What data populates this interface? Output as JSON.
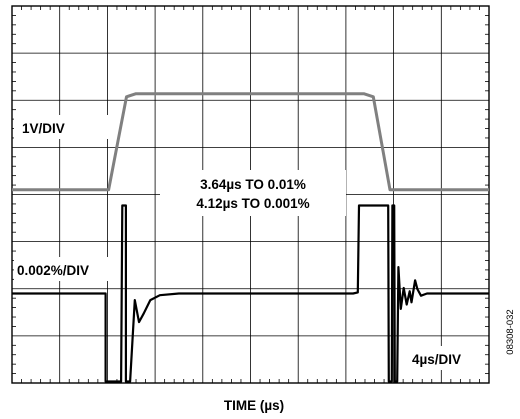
{
  "chart_data": {
    "type": "line",
    "title": "",
    "xlabel": "TIME (µs)",
    "ylabel": "",
    "grid": true,
    "divisions": {
      "x": 10,
      "y": 8
    },
    "x_scale_label": "4µs/DIV",
    "xlim": [
      0,
      40
    ],
    "series": [
      {
        "name": "1V/DIV",
        "color": "#808080",
        "unit": "V",
        "points": [
          [
            0,
            0
          ],
          [
            8.1,
            0
          ],
          [
            9.6,
            3.0
          ],
          [
            10.4,
            3.1
          ],
          [
            29.5,
            3.1
          ],
          [
            30.3,
            3.0
          ],
          [
            31.7,
            0
          ],
          [
            40,
            0
          ]
        ]
      },
      {
        "name": "0.002%/DIV",
        "color": "#000000",
        "unit": "%",
        "points": [
          [
            0,
            0
          ],
          [
            7.85,
            0
          ],
          [
            7.85,
            -4.0
          ],
          [
            9.15,
            -4.0
          ],
          [
            9.25,
            4.0
          ],
          [
            9.55,
            4.0
          ],
          [
            9.55,
            -4.0
          ],
          [
            9.9,
            -4.0
          ],
          [
            10.3,
            -0.3
          ],
          [
            10.65,
            -1.3
          ],
          [
            11.05,
            -0.9
          ],
          [
            11.6,
            -0.3
          ],
          [
            12.4,
            -0.08
          ],
          [
            14.0,
            0
          ],
          [
            28.6,
            0
          ],
          [
            29.0,
            0.05
          ],
          [
            29.1,
            4.0
          ],
          [
            31.55,
            4.0
          ],
          [
            31.6,
            -4.0
          ],
          [
            31.85,
            -4.0
          ],
          [
            31.9,
            4.0
          ],
          [
            32.05,
            4.0
          ],
          [
            32.1,
            -4.0
          ],
          [
            32.3,
            -4.0
          ],
          [
            32.4,
            1.2
          ],
          [
            32.6,
            -0.7
          ],
          [
            32.85,
            0.25
          ],
          [
            33.1,
            -0.5
          ],
          [
            33.35,
            0.1
          ],
          [
            33.5,
            -0.4
          ],
          [
            33.8,
            0.6
          ],
          [
            34.0,
            0.2
          ],
          [
            34.3,
            -0.1
          ],
          [
            34.8,
            0
          ],
          [
            40,
            0
          ]
        ]
      }
    ],
    "annotations": [
      "3.64µs TO 0.01%",
      "4.12µs TO 0.001%"
    ]
  },
  "labels": {
    "trace1_scale": "1V/DIV",
    "trace2_scale": "0.002%/DIV",
    "annotation_line1": "3.64µs TO 0.01%",
    "annotation_line2": "4.12µs TO 0.001%",
    "time_scale": "4µs/DIV",
    "x_axis_title": "TIME (µs)",
    "figure_id": "08308-032"
  }
}
